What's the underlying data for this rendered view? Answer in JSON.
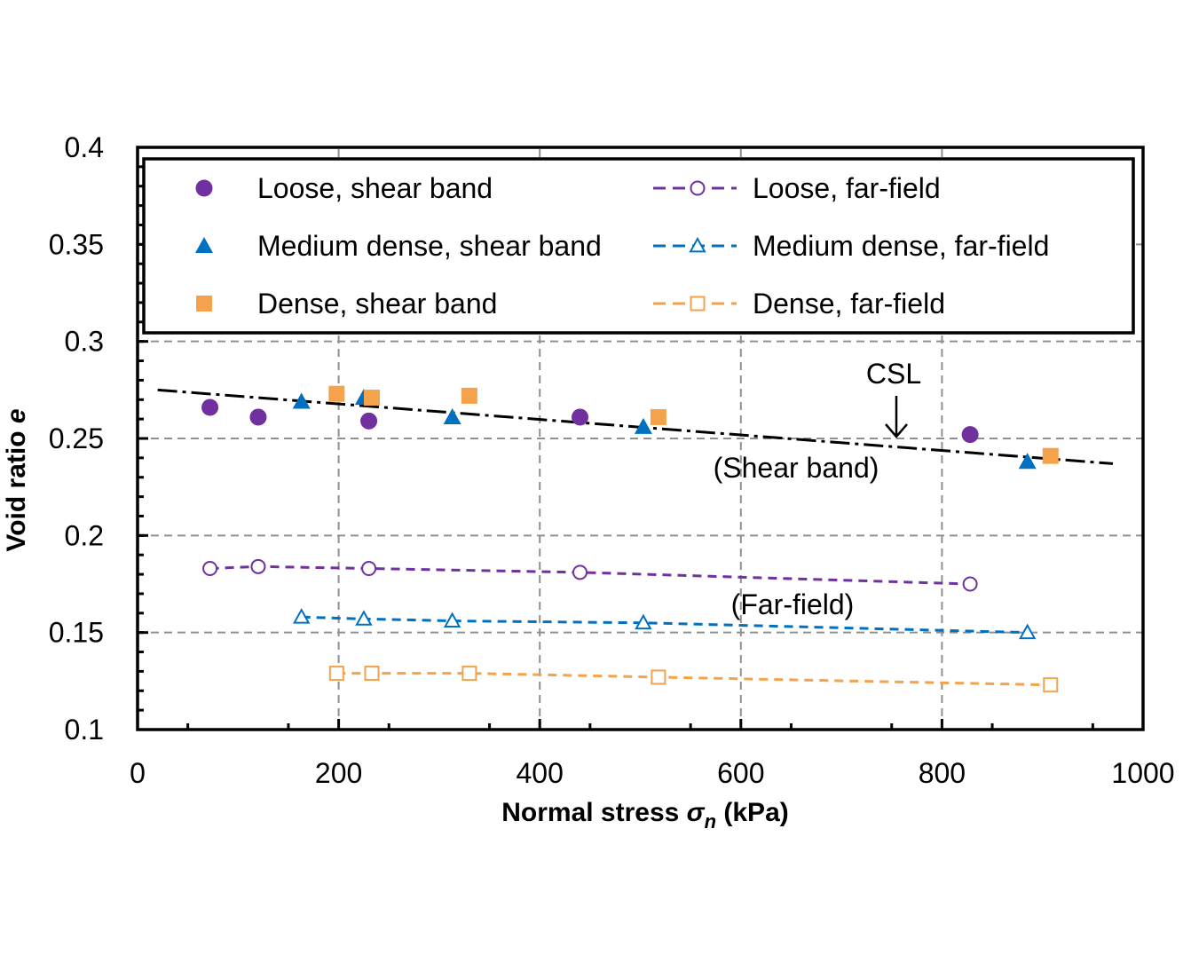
{
  "chart_data": {
    "type": "scatter",
    "xlabel": {
      "main": "Normal stress ",
      "symbol": "σ",
      "sub": "n",
      "unit": " (kPa)"
    },
    "ylabel": {
      "main": "Void ratio ",
      "symbol": "e"
    },
    "xlim": [
      0,
      1000
    ],
    "ylim": [
      0.1,
      0.4
    ],
    "x_ticks": [
      "0",
      "200",
      "400",
      "600",
      "800",
      "1000"
    ],
    "y_ticks": [
      "0.1",
      "0.15",
      "0.2",
      "0.25",
      "0.3",
      "0.35",
      "0.4"
    ],
    "grid": true,
    "legend_position": "top",
    "colors": {
      "loose": "#7030A0",
      "medium": "#0070C0",
      "dense": "#F4A24C",
      "csl": "#000000",
      "grid": "#909090"
    },
    "series": [
      {
        "name": "Loose, shear band",
        "marker": "circle",
        "filled": true,
        "line": false,
        "color_key": "loose",
        "points": [
          [
            72,
            0.266
          ],
          [
            120,
            0.261
          ],
          [
            230,
            0.259
          ],
          [
            440,
            0.261
          ],
          [
            828,
            0.252
          ]
        ]
      },
      {
        "name": "Medium dense, shear band",
        "marker": "triangle",
        "filled": true,
        "line": false,
        "color_key": "medium",
        "points": [
          [
            163,
            0.269
          ],
          [
            225,
            0.271
          ],
          [
            313,
            0.261
          ],
          [
            503,
            0.256
          ],
          [
            885,
            0.238
          ]
        ]
      },
      {
        "name": "Dense, shear band",
        "marker": "square",
        "filled": true,
        "line": false,
        "color_key": "dense",
        "points": [
          [
            198,
            0.273
          ],
          [
            233,
            0.271
          ],
          [
            330,
            0.272
          ],
          [
            518,
            0.261
          ],
          [
            908,
            0.241
          ]
        ]
      },
      {
        "name": "Loose, far-field",
        "marker": "circle",
        "filled": false,
        "line": true,
        "color_key": "loose",
        "points": [
          [
            72,
            0.183
          ],
          [
            120,
            0.184
          ],
          [
            230,
            0.183
          ],
          [
            440,
            0.181
          ],
          [
            828,
            0.175
          ]
        ]
      },
      {
        "name": "Medium dense, far-field",
        "marker": "triangle",
        "filled": false,
        "line": true,
        "color_key": "medium",
        "points": [
          [
            163,
            0.158
          ],
          [
            225,
            0.157
          ],
          [
            313,
            0.156
          ],
          [
            503,
            0.155
          ],
          [
            885,
            0.15
          ]
        ]
      },
      {
        "name": "Dense, far-field",
        "marker": "square",
        "filled": false,
        "line": true,
        "color_key": "dense",
        "points": [
          [
            198,
            0.129
          ],
          [
            233,
            0.129
          ],
          [
            330,
            0.129
          ],
          [
            518,
            0.127
          ],
          [
            908,
            0.123
          ]
        ]
      }
    ],
    "csl_line": {
      "points": [
        [
          20,
          0.275
        ],
        [
          970,
          0.237
        ]
      ]
    }
  },
  "annotations": {
    "csl": "CSL",
    "shear_band": "(Shear band)",
    "far_field": "(Far-field)"
  }
}
